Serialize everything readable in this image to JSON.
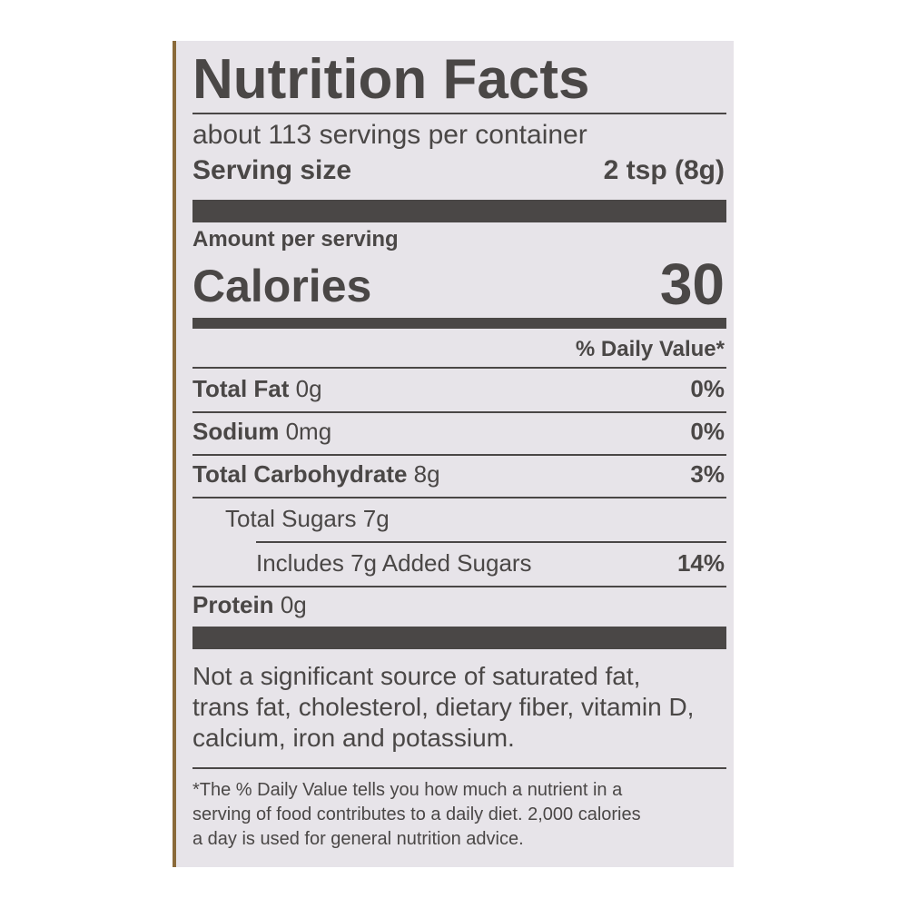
{
  "label": {
    "title": "Nutrition Facts",
    "servings": "about 113 servings per container",
    "serving_size": {
      "label": "Serving size",
      "value": "2 tsp (8g)"
    },
    "amount_per_serving": "Amount per serving",
    "calories": {
      "label": "Calories",
      "value": "30"
    },
    "daily_value_header": "% Daily Value*",
    "nutrients": [
      {
        "name": "Total Fat",
        "amount": "0g",
        "dv": "0%"
      },
      {
        "name": "Sodium",
        "amount": "0mg",
        "dv": "0%"
      },
      {
        "name": "Total Carbohydrate",
        "amount": "8g",
        "dv": "3%"
      },
      {
        "name": "Total Sugars 7g"
      },
      {
        "name": "Includes 7g Added Sugars",
        "dv": "14%"
      },
      {
        "name": "Protein",
        "amount": "0g"
      }
    ],
    "note": [
      "Not a significant source of saturated fat,",
      "trans fat, cholesterol, dietary fiber, vitamin D,",
      "calcium, iron and potassium."
    ],
    "footnote": [
      "*The % Daily Value tells you how much a nutrient in a",
      "serving of food contributes to a daily diet. 2,000 calories",
      "a day is used for general nutrition advice."
    ]
  }
}
